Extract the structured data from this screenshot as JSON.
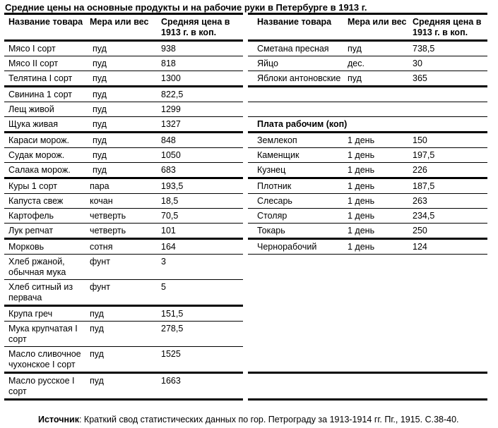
{
  "title": "Средние цены на основные продукты и на рабочие руки в Петербурге в 1913 г.",
  "headers": {
    "left": [
      "Название товара",
      "Мера или вес",
      "Средняя цена в 1913 г. в коп."
    ],
    "right": [
      "Название товара",
      "Мера или вес",
      "Средняя цена в 1913 г. в коп."
    ]
  },
  "rows": [
    {
      "left": [
        "Мясо I сорт",
        "пуд",
        "938"
      ],
      "right": [
        "Сметана пресная",
        "пуд",
        "738,5"
      ]
    },
    {
      "left": [
        "Мясо II сорт",
        "пуд",
        "818"
      ],
      "right": [
        "Яйцо",
        "дес.",
        "30"
      ]
    },
    {
      "left": [
        "Телятина I сорт",
        "пуд",
        "1300"
      ],
      "right": [
        "Яблоки антоновские",
        "пуд",
        "365"
      ]
    },
    {
      "left": [
        "Свинина 1 сорт",
        "пуд",
        "822,5"
      ],
      "right": [
        "",
        "",
        ""
      ]
    },
    {
      "left": [
        "Лещ живой",
        "пуд",
        "1299"
      ],
      "right": [
        "",
        "",
        ""
      ]
    },
    {
      "left": [
        "Щука живая",
        "пуд",
        "1327"
      ],
      "right": [
        "Плата рабочим (коп)",
        "",
        ""
      ]
    },
    {
      "left": [
        "Караси морож.",
        "пуд",
        "848"
      ],
      "right": [
        "Землекоп",
        "1 день",
        "150"
      ]
    },
    {
      "left": [
        "Судак морож.",
        "пуд",
        "1050"
      ],
      "right": [
        "Каменщик",
        "1 день",
        "197,5"
      ]
    },
    {
      "left": [
        "Салака морож.",
        "пуд",
        "683"
      ],
      "right": [
        "Кузнец",
        "1 день",
        "226"
      ]
    },
    {
      "left": [
        "Куры 1 сорт",
        "пара",
        "193,5"
      ],
      "right": [
        "Плотник",
        "1 день",
        "187,5"
      ]
    },
    {
      "left": [
        "Капуста свеж",
        "кочан",
        "18,5"
      ],
      "right": [
        "Слесарь",
        "1 день",
        "263"
      ]
    },
    {
      "left": [
        "Картофель",
        "четверть",
        "70,5"
      ],
      "right": [
        "Столяр",
        "1 день",
        "234,5"
      ]
    },
    {
      "left": [
        "Лук репчат",
        "четверть",
        "101"
      ],
      "right": [
        "Токарь",
        "1 день",
        "250"
      ]
    },
    {
      "left": [
        "Морковь",
        "сотня",
        "164"
      ],
      "right": [
        "Чернорабочий",
        "1 день",
        "124"
      ]
    },
    {
      "left": [
        "Хлеб ржаной, обычная мука",
        "фунт",
        "3"
      ],
      "right": [
        "",
        "",
        ""
      ]
    },
    {
      "left": [
        "Хлеб ситный из первача",
        "фунт",
        "5"
      ],
      "right": [
        "",
        "",
        ""
      ]
    },
    {
      "left": [
        "Крупа греч",
        "пуд",
        "151,5"
      ],
      "right": [
        "",
        "",
        ""
      ]
    },
    {
      "left": [
        "Мука крупчатая I сорт",
        "пуд",
        "278,5"
      ],
      "right": [
        "",
        "",
        ""
      ]
    },
    {
      "left": [
        "Масло сливочное чухонское I сорт",
        "пуд",
        "1525"
      ],
      "right": [
        "",
        "",
        ""
      ]
    },
    {
      "left": [
        "Масло русское I сорт",
        "пуд",
        "1663"
      ],
      "right": [
        "",
        "",
        ""
      ]
    }
  ],
  "footer": {
    "label": "Источник",
    "text": ": Краткий свод статистических данных по гор. Петрограду за 1913-1914 гг. Пг., 1915. С.38-40."
  }
}
